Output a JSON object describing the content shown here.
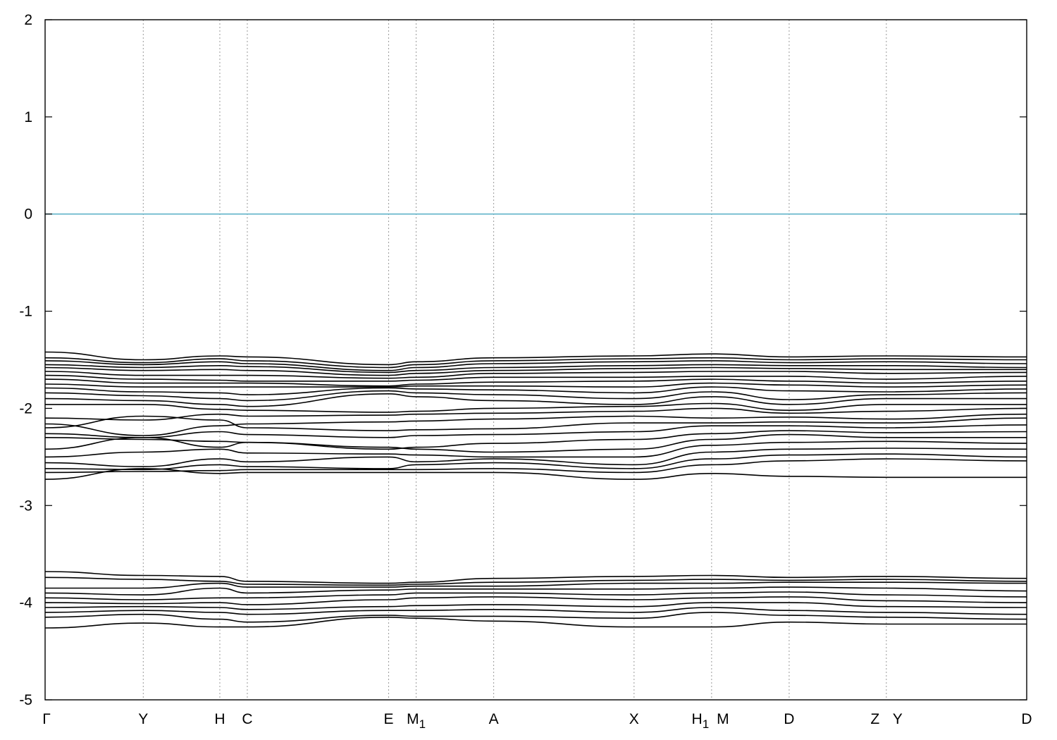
{
  "chart_data": {
    "type": "line",
    "title": "",
    "xlabel": "",
    "ylabel": "",
    "ylim": [
      -5,
      2
    ],
    "yticks": [
      "2",
      "1",
      "0",
      "-1",
      "-2",
      "-3",
      "-4",
      "-5"
    ],
    "ytick_values": [
      2,
      1,
      0,
      -1,
      -2,
      -3,
      -4,
      -5
    ],
    "xlim": [
      0,
      1
    ],
    "reference_line": {
      "y": 0,
      "color": "#5fb3c8"
    },
    "kpoints": [
      {
        "label": "Γ",
        "x": 0.0
      },
      {
        "label": "Y",
        "x": 0.1
      },
      {
        "label": "H",
        "x": 0.178
      },
      {
        "label": "C",
        "x": 0.206
      },
      {
        "label": "E",
        "x": 0.35
      },
      {
        "label": "M",
        "sub": "1",
        "x": 0.378
      },
      {
        "label": "A",
        "x": 0.457
      },
      {
        "label": "X",
        "x": 0.6
      },
      {
        "label": "H",
        "sub": "1",
        "x": 0.679
      },
      {
        "label": "M",
        "x": 0.679
      },
      {
        "label": "D",
        "x": 0.758
      },
      {
        "label": "Z",
        "x": 0.857
      },
      {
        "label": "Y",
        "x": 0.857
      },
      {
        "label": "D",
        "x": 1.0
      }
    ],
    "discontinuities_x": [
      0.679,
      0.857
    ],
    "kx": [
      0.0,
      0.1,
      0.178,
      0.206,
      0.35,
      0.378,
      0.457,
      0.6,
      0.679,
      0.758,
      0.857,
      1.0
    ],
    "series": [
      {
        "values": [
          -1.42,
          -1.5,
          -1.46,
          -1.47,
          -1.55,
          -1.52,
          -1.48,
          -1.46,
          -1.44,
          -1.47,
          -1.46,
          -1.47
        ]
      },
      {
        "values": [
          -1.48,
          -1.53,
          -1.49,
          -1.51,
          -1.58,
          -1.55,
          -1.51,
          -1.49,
          -1.48,
          -1.5,
          -1.49,
          -1.5
        ]
      },
      {
        "values": [
          -1.51,
          -1.55,
          -1.52,
          -1.54,
          -1.61,
          -1.58,
          -1.54,
          -1.52,
          -1.51,
          -1.53,
          -1.52,
          -1.54
        ]
      },
      {
        "values": [
          -1.55,
          -1.58,
          -1.56,
          -1.57,
          -1.63,
          -1.61,
          -1.58,
          -1.56,
          -1.55,
          -1.56,
          -1.56,
          -1.58
        ]
      },
      {
        "values": [
          -1.58,
          -1.61,
          -1.6,
          -1.61,
          -1.66,
          -1.64,
          -1.61,
          -1.59,
          -1.58,
          -1.59,
          -1.6,
          -1.6
        ]
      },
      {
        "values": [
          -1.62,
          -1.66,
          -1.66,
          -1.66,
          -1.69,
          -1.68,
          -1.64,
          -1.63,
          -1.62,
          -1.62,
          -1.64,
          -1.63
        ]
      },
      {
        "values": [
          -1.66,
          -1.7,
          -1.71,
          -1.72,
          -1.72,
          -1.71,
          -1.68,
          -1.68,
          -1.67,
          -1.67,
          -1.7,
          -1.67
        ]
      },
      {
        "values": [
          -1.7,
          -1.74,
          -1.74,
          -1.74,
          -1.77,
          -1.75,
          -1.73,
          -1.72,
          -1.7,
          -1.72,
          -1.74,
          -1.72
        ]
      },
      {
        "values": [
          -1.75,
          -1.78,
          -1.78,
          -1.78,
          -1.78,
          -1.77,
          -1.77,
          -1.78,
          -1.74,
          -1.76,
          -1.78,
          -1.76
        ]
      },
      {
        "values": [
          -1.79,
          -1.83,
          -1.84,
          -1.86,
          -1.79,
          -1.8,
          -1.81,
          -1.84,
          -1.78,
          -1.82,
          -1.83,
          -1.8
        ]
      },
      {
        "values": [
          -1.84,
          -1.87,
          -1.9,
          -1.92,
          -1.82,
          -1.84,
          -1.86,
          -1.9,
          -1.83,
          -1.91,
          -1.86,
          -1.84
        ]
      },
      {
        "values": [
          -1.9,
          -1.92,
          -1.96,
          -1.98,
          -1.85,
          -1.88,
          -1.92,
          -1.96,
          -1.88,
          -1.96,
          -1.9,
          -1.9
        ]
      },
      {
        "values": [
          -1.96,
          -1.96,
          -2.01,
          -2.02,
          -2.04,
          -2.03,
          -2.0,
          -1.98,
          -1.95,
          -2.02,
          -1.96,
          -1.96
        ]
      },
      {
        "values": [
          -2.1,
          -2.12,
          -2.06,
          -2.08,
          -2.07,
          -2.06,
          -2.05,
          -2.03,
          -2.0,
          -2.05,
          -2.03,
          -2.0
        ]
      },
      {
        "values": [
          -2.16,
          -2.28,
          -2.18,
          -2.16,
          -2.14,
          -2.13,
          -2.11,
          -2.08,
          -2.1,
          -2.09,
          -2.11,
          -2.06
        ]
      },
      {
        "values": [
          -2.2,
          -2.08,
          -2.12,
          -2.2,
          -2.23,
          -2.22,
          -2.21,
          -2.15,
          -2.15,
          -2.14,
          -2.15,
          -2.1
        ]
      },
      {
        "values": [
          -2.26,
          -2.3,
          -2.24,
          -2.27,
          -2.3,
          -2.28,
          -2.27,
          -2.24,
          -2.18,
          -2.18,
          -2.2,
          -2.17
        ]
      },
      {
        "values": [
          -2.3,
          -2.32,
          -2.34,
          -2.35,
          -2.42,
          -2.4,
          -2.36,
          -2.32,
          -2.26,
          -2.23,
          -2.25,
          -2.24
        ]
      },
      {
        "values": [
          -2.42,
          -2.3,
          -2.4,
          -2.35,
          -2.4,
          -2.42,
          -2.45,
          -2.42,
          -2.32,
          -2.27,
          -2.3,
          -2.3
        ]
      },
      {
        "values": [
          -2.5,
          -2.45,
          -2.42,
          -2.46,
          -2.47,
          -2.48,
          -2.5,
          -2.5,
          -2.38,
          -2.35,
          -2.34,
          -2.36
        ]
      },
      {
        "values": [
          -2.56,
          -2.6,
          -2.52,
          -2.55,
          -2.5,
          -2.55,
          -2.52,
          -2.58,
          -2.45,
          -2.42,
          -2.41,
          -2.42
        ]
      },
      {
        "values": [
          -2.62,
          -2.63,
          -2.58,
          -2.6,
          -2.62,
          -2.58,
          -2.56,
          -2.62,
          -2.52,
          -2.48,
          -2.47,
          -2.5
        ]
      },
      {
        "values": [
          -2.66,
          -2.65,
          -2.64,
          -2.63,
          -2.63,
          -2.63,
          -2.62,
          -2.66,
          -2.58,
          -2.54,
          -2.52,
          -2.54
        ]
      },
      {
        "values": [
          -2.73,
          -2.62,
          -2.67,
          -2.66,
          -2.66,
          -2.66,
          -2.66,
          -2.73,
          -2.67,
          -2.7,
          -2.71,
          -2.71
        ]
      },
      {
        "values": [
          -3.68,
          -3.72,
          -3.73,
          -3.78,
          -3.8,
          -3.79,
          -3.75,
          -3.73,
          -3.72,
          -3.74,
          -3.73,
          -3.75
        ]
      },
      {
        "values": [
          -3.74,
          -3.76,
          -3.78,
          -3.81,
          -3.82,
          -3.81,
          -3.79,
          -3.77,
          -3.76,
          -3.77,
          -3.76,
          -3.78
        ]
      },
      {
        "values": [
          -3.85,
          -3.85,
          -3.8,
          -3.84,
          -3.84,
          -3.83,
          -3.83,
          -3.8,
          -3.8,
          -3.79,
          -3.79,
          -3.8
        ]
      },
      {
        "values": [
          -3.9,
          -3.92,
          -3.85,
          -3.9,
          -3.87,
          -3.86,
          -3.86,
          -3.86,
          -3.85,
          -3.84,
          -3.85,
          -3.88
        ]
      },
      {
        "values": [
          -3.95,
          -3.97,
          -3.95,
          -3.95,
          -3.92,
          -3.9,
          -3.9,
          -3.92,
          -3.9,
          -3.89,
          -3.92,
          -3.94
        ]
      },
      {
        "values": [
          -4.0,
          -4.01,
          -4.0,
          -4.02,
          -3.97,
          -3.95,
          -3.94,
          -3.97,
          -3.95,
          -3.94,
          -3.98,
          -4.0
        ]
      },
      {
        "values": [
          -4.05,
          -4.04,
          -4.05,
          -4.07,
          -4.04,
          -4.03,
          -4.02,
          -4.04,
          -4.0,
          -4.0,
          -4.04,
          -4.05
        ]
      },
      {
        "values": [
          -4.1,
          -4.08,
          -4.1,
          -4.12,
          -4.08,
          -4.08,
          -4.07,
          -4.1,
          -4.05,
          -4.08,
          -4.1,
          -4.12
        ]
      },
      {
        "values": [
          -4.15,
          -4.12,
          -4.17,
          -4.2,
          -4.13,
          -4.14,
          -4.14,
          -4.16,
          -4.1,
          -4.13,
          -4.15,
          -4.17
        ]
      },
      {
        "values": [
          -4.26,
          -4.21,
          -4.25,
          -4.25,
          -4.15,
          -4.16,
          -4.19,
          -4.25,
          -4.25,
          -4.2,
          -4.22,
          -4.22
        ]
      }
    ]
  }
}
